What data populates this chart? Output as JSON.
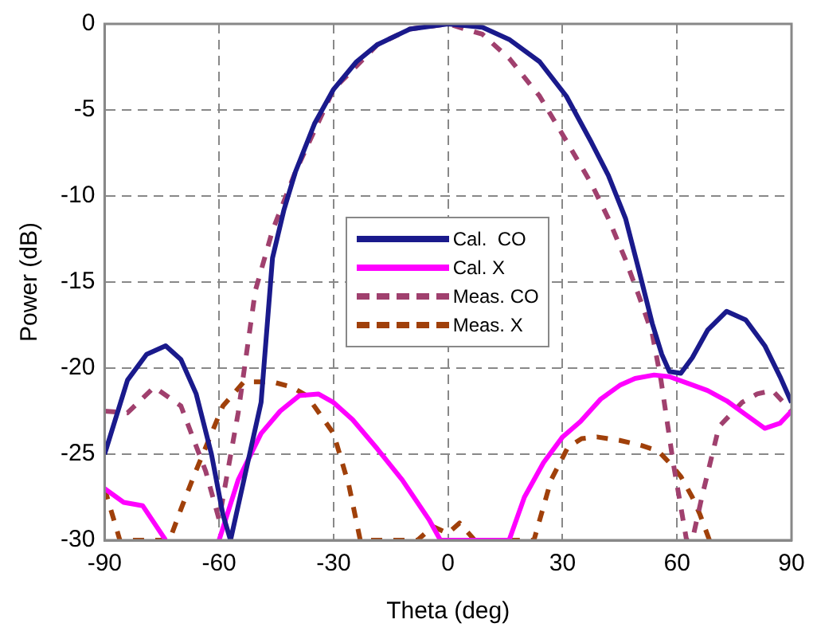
{
  "chart_data": {
    "type": "line",
    "xlabel": "Theta (deg)",
    "ylabel": "Power (dB)",
    "xlim": [
      -90,
      90
    ],
    "xticks": [
      -90,
      -60,
      -30,
      0,
      30,
      60,
      90
    ],
    "ylim": [
      -30,
      0
    ],
    "yticks": [
      0,
      -5,
      -10,
      -15,
      -20,
      -25,
      -30
    ],
    "grid": true,
    "legend": "center",
    "marker": "none",
    "series": [
      {
        "name": "Cal.  CO",
        "color": "#1a1a8c",
        "line_style": "solid",
        "x": [
          -90,
          -84,
          -79,
          -74,
          -70,
          -66,
          -62,
          -59,
          -57,
          -53,
          -49,
          -46,
          -43,
          -40,
          -35,
          -30,
          -24,
          -18.5,
          -10,
          0,
          9,
          16,
          24,
          31,
          37.6,
          42,
          46.5,
          50,
          53.5,
          56,
          58,
          61,
          64,
          68,
          73,
          78,
          83,
          87,
          90
        ],
        "values": [
          -25,
          -20.7,
          -19.2,
          -18.7,
          -19.5,
          -21.5,
          -25,
          -28.5,
          -30,
          -26,
          -22,
          -13.6,
          -10.8,
          -8.6,
          -5.8,
          -3.8,
          -2.2,
          -1.2,
          -0.3,
          0,
          -0.2,
          -0.9,
          -2.2,
          -4.2,
          -6.9,
          -8.8,
          -11.3,
          -14.3,
          -17.4,
          -19.2,
          -20.2,
          -20.3,
          -19.4,
          -17.8,
          -16.7,
          -17.2,
          -18.7,
          -20.5,
          -22
        ]
      },
      {
        "name": "Cal. X",
        "color": "#ff00ff",
        "line_style": "solid",
        "x": [
          -90,
          -85,
          -80,
          -77,
          -74,
          -70,
          -66,
          -62,
          -60,
          -55,
          -49,
          -44,
          -39,
          -34,
          -30,
          -25,
          -18.5,
          -12,
          -5,
          -2,
          16,
          20,
          25,
          30,
          34.7,
          40,
          45,
          49,
          54,
          58,
          63,
          68,
          73,
          78,
          83,
          87,
          90
        ],
        "values": [
          -27,
          -27.8,
          -28,
          -29,
          -30,
          null,
          null,
          null,
          -30,
          -26.5,
          -23.8,
          -22.5,
          -21.6,
          -21.5,
          -22,
          -23,
          -24.7,
          -26.5,
          -28.8,
          -30,
          -30,
          -27.5,
          -25.5,
          -24,
          -23.1,
          -21.8,
          -21,
          -20.6,
          -20.4,
          -20.5,
          -20.9,
          -21.3,
          -21.9,
          -22.7,
          -23.5,
          -23.2,
          -22.5
        ]
      },
      {
        "name": "Meas. CO",
        "color": "#a0406e",
        "line_style": "dashed",
        "x": [
          -90,
          -84,
          -77,
          -70,
          -63.5,
          -60,
          -55,
          -50.5,
          -46,
          -40,
          -30,
          -18.5,
          -10,
          0,
          9,
          16,
          24,
          31,
          37.6,
          42,
          46.5,
          50,
          53.5,
          55.8,
          59,
          62.5,
          64,
          66.5,
          71,
          77,
          81,
          85,
          90
        ],
        "values": [
          -22.5,
          -22.6,
          -21.1,
          -22.2,
          -26,
          -28.8,
          -22.6,
          -15.5,
          -12,
          -8.6,
          -3.8,
          -1.2,
          -0.3,
          0,
          -0.6,
          -2,
          -4.2,
          -6.8,
          -9.3,
          -11.3,
          -13.7,
          -15.8,
          -18,
          -20.7,
          -25.5,
          -30,
          -30,
          -27.5,
          -23.4,
          -22,
          -21.5,
          -21.3,
          -22.5
        ]
      },
      {
        "name": "Meas. X",
        "color": "#a0400a",
        "line_style": "dashed",
        "x": [
          -90,
          -88,
          -86,
          -73,
          -70,
          -66.5,
          -62,
          -59,
          -53.5,
          -46,
          -41,
          -37,
          -30,
          -26,
          -23,
          -8,
          -4,
          0,
          3,
          7,
          22.5,
          27,
          31.4,
          35,
          39,
          45,
          50.7,
          55,
          58,
          61,
          64,
          66,
          68.5
        ],
        "values": [
          -27,
          -28.5,
          -30,
          -30,
          -28.2,
          -26.2,
          -23.8,
          -22.2,
          -20.8,
          -20.8,
          -21.1,
          -21.6,
          -23.8,
          -26.8,
          -30,
          -30,
          -29.2,
          -29.6,
          -29,
          -30,
          -30,
          -26.5,
          -24.6,
          -24.1,
          -24,
          -24.2,
          -24.5,
          -24.8,
          -25.5,
          -26.3,
          -27.5,
          -28.5,
          -30
        ]
      }
    ]
  }
}
